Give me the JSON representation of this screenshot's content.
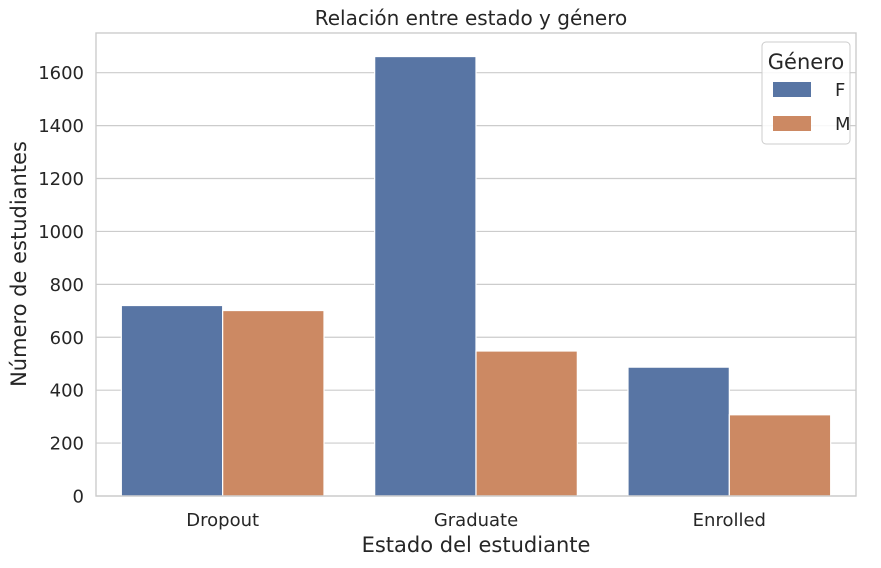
{
  "chart_data": {
    "type": "bar",
    "title": "Relación entre estado y género",
    "xlabel": "Estado del estudiante",
    "ylabel": "Número de estudiantes",
    "categories": [
      "Dropout",
      "Graduate",
      "Enrolled"
    ],
    "series": [
      {
        "name": "F",
        "color": "#5875a4",
        "values": [
          720,
          1661,
          487
        ]
      },
      {
        "name": "M",
        "color": "#cc8963",
        "values": [
          701,
          548,
          307
        ]
      }
    ],
    "ylim": [
      0,
      1750
    ],
    "yticks": [
      0,
      200,
      400,
      600,
      800,
      1000,
      1200,
      1400,
      1600
    ],
    "legend": {
      "title": "Género",
      "position": "top-right"
    },
    "grid": "horizontal"
  }
}
